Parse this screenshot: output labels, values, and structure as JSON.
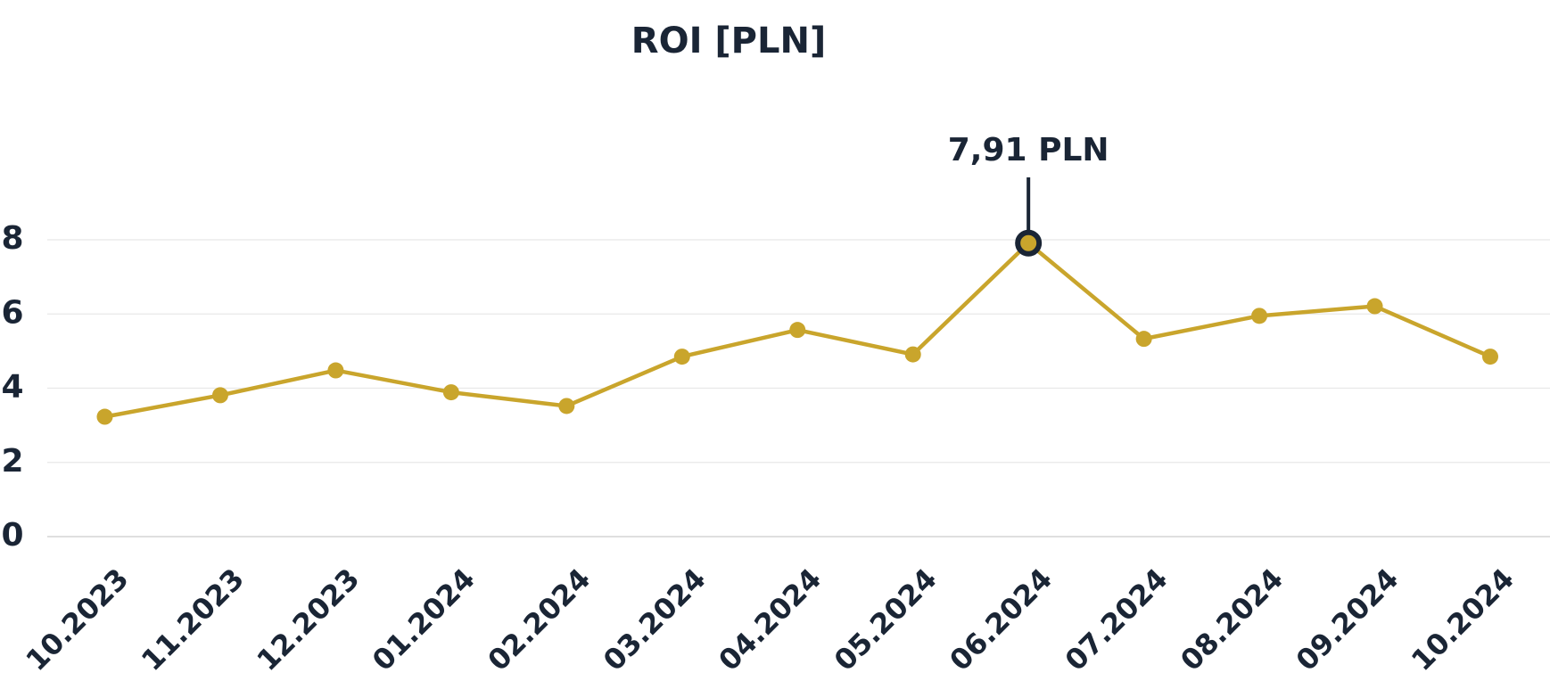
{
  "chart_data": {
    "type": "line",
    "title": "ROI [PLN]",
    "categories": [
      "10.2023",
      "11.2023",
      "12.2023",
      "01.2024",
      "02.2024",
      "03.2024",
      "04.2024",
      "05.2024",
      "06.2024",
      "07.2024",
      "08.2024",
      "09.2024",
      "10.2024"
    ],
    "values": [
      3.23,
      3.81,
      4.48,
      3.89,
      3.52,
      4.85,
      5.57,
      4.91,
      7.91,
      5.33,
      5.95,
      6.21,
      4.85
    ],
    "value_labels": [
      null,
      null,
      null,
      null,
      null,
      null,
      null,
      null,
      "7,91 PLN",
      null,
      null,
      null,
      null
    ],
    "color": "#c9a52c",
    "highlight_color": "#1a2535",
    "ylim": [
      0,
      8.9
    ],
    "yticks": [
      0,
      2,
      4,
      6,
      8
    ],
    "grid": true
  }
}
